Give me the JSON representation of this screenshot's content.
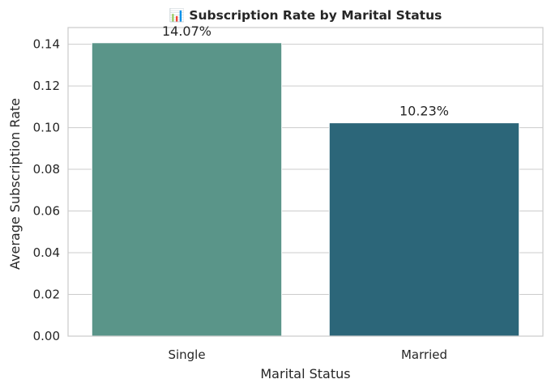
{
  "chart_data": {
    "type": "bar",
    "title": "📊 Subscription Rate by Marital Status",
    "xlabel": "Marital Status",
    "ylabel": "Average Subscription Rate",
    "categories": [
      "Single",
      "Married"
    ],
    "values": [
      0.1407,
      0.1023
    ],
    "data_labels": [
      "14.07%",
      "10.23%"
    ],
    "colors": [
      "#5a9589",
      "#2c6679"
    ],
    "ylim": [
      0,
      0.148
    ],
    "yticks": [
      0.0,
      0.02,
      0.04,
      0.06,
      0.08,
      0.1,
      0.12,
      0.14
    ],
    "ytick_labels": [
      "0.00",
      "0.02",
      "0.04",
      "0.06",
      "0.08",
      "0.10",
      "0.12",
      "0.14"
    ],
    "grid": true,
    "legend": "none"
  }
}
